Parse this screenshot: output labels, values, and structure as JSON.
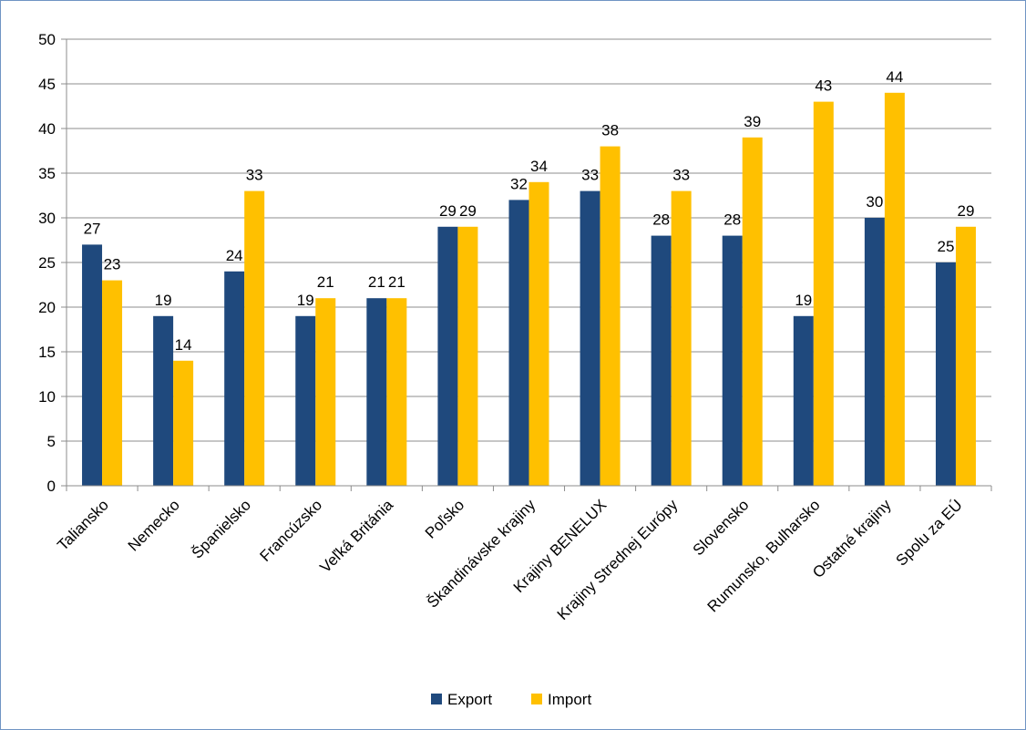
{
  "chart_data": {
    "type": "bar",
    "categories": [
      "Taliansko",
      "Nemecko",
      "Španielsko",
      "Francúzsko",
      "Veľká Británia",
      "Poľsko",
      "Škandinávske krajiny",
      "Krajiny BENELUX",
      "Krajiny Strednej Európy",
      "Slovensko",
      "Rumunsko, Bulharsko",
      "Ostatné krajiny",
      "Spolu za EÚ"
    ],
    "series": [
      {
        "name": "Export",
        "color": "#1f497d",
        "values": [
          27,
          19,
          24,
          19,
          21,
          29,
          32,
          33,
          28,
          28,
          19,
          30,
          25
        ]
      },
      {
        "name": "Import",
        "color": "#ffc000",
        "values": [
          23,
          14,
          33,
          21,
          21,
          29,
          34,
          38,
          33,
          39,
          43,
          44,
          29
        ]
      }
    ],
    "ylim": [
      0,
      50
    ],
    "yticks": [
      0,
      5,
      10,
      15,
      20,
      25,
      30,
      35,
      40,
      45,
      50
    ],
    "grid": true,
    "legend_position": "bottom",
    "data_labels": true
  }
}
